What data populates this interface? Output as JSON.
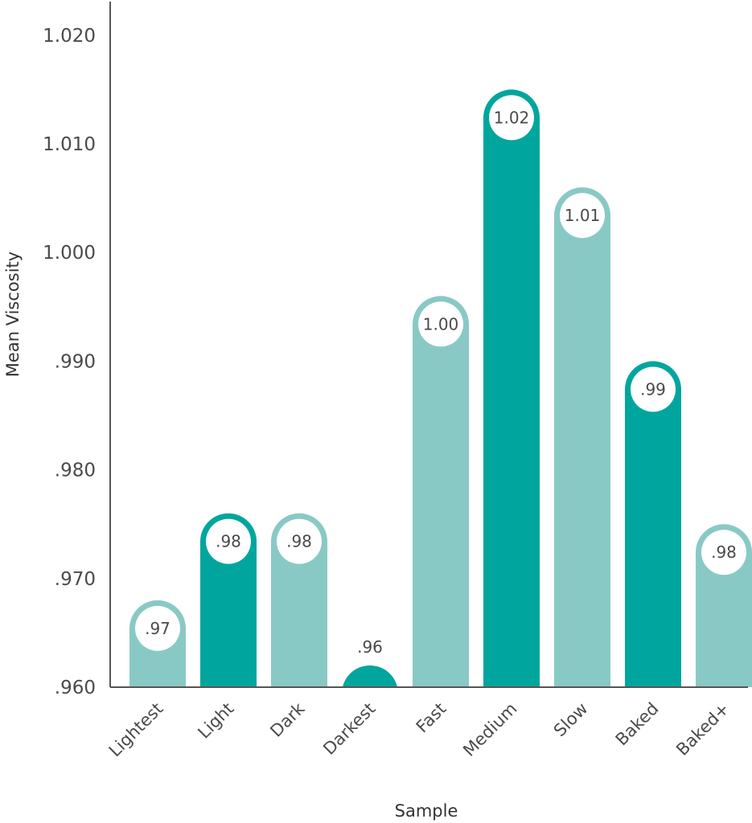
{
  "chart_data": {
    "type": "bar",
    "title": "",
    "xlabel": "Sample",
    "ylabel": "Mean Viscosity",
    "ylim": [
      0.96,
      1.0225
    ],
    "yticks": [
      {
        "value": 0.96,
        "label": ".960"
      },
      {
        "value": 0.97,
        "label": ".970"
      },
      {
        "value": 0.98,
        "label": ".980"
      },
      {
        "value": 0.99,
        "label": ".990"
      },
      {
        "value": 1.0,
        "label": "1.000"
      },
      {
        "value": 1.01,
        "label": "1.010"
      },
      {
        "value": 1.02,
        "label": "1.020"
      }
    ],
    "categories": [
      "Lightest",
      "Light",
      "Dark",
      "Darkest",
      "Fast",
      "Medium",
      "Slow",
      "Baked",
      "Baked+"
    ],
    "values": [
      0.968,
      0.976,
      0.976,
      0.962,
      0.996,
      1.015,
      1.006,
      0.99,
      0.975
    ],
    "data_labels": [
      ".97",
      ".98",
      ".98",
      ".96",
      "1.00",
      "1.02",
      "1.01",
      ".99",
      ".98"
    ],
    "bar_colors": [
      "#89c9c5",
      "#00a69d",
      "#89c9c5",
      "#00a69d",
      "#89c9c5",
      "#00a69d",
      "#89c9c5",
      "#00a69d",
      "#89c9c5"
    ],
    "grid": false,
    "legend": "none"
  }
}
